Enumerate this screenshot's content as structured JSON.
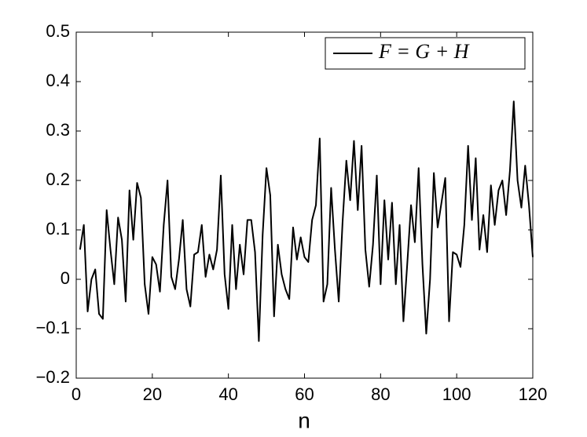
{
  "chart_data": {
    "type": "line",
    "xlabel": "n",
    "x": [
      1,
      2,
      3,
      4,
      5,
      6,
      7,
      8,
      9,
      10,
      11,
      12,
      13,
      14,
      15,
      16,
      17,
      18,
      19,
      20,
      21,
      22,
      23,
      24,
      25,
      26,
      27,
      28,
      29,
      30,
      31,
      32,
      33,
      34,
      35,
      36,
      37,
      38,
      39,
      40,
      41,
      42,
      43,
      44,
      45,
      46,
      47,
      48,
      49,
      50,
      51,
      52,
      53,
      54,
      55,
      56,
      57,
      58,
      59,
      60,
      61,
      62,
      63,
      64,
      65,
      66,
      67,
      68,
      69,
      70,
      71,
      72,
      73,
      74,
      75,
      76,
      77,
      78,
      79,
      80,
      81,
      82,
      83,
      84,
      85,
      86,
      87,
      88,
      89,
      90,
      91,
      92,
      93,
      94,
      95,
      96,
      97,
      98,
      99,
      100,
      101,
      102,
      103,
      104,
      105,
      106,
      107,
      108,
      109,
      110,
      111,
      112,
      113,
      114,
      115,
      116,
      117,
      118,
      119,
      120
    ],
    "series": [
      {
        "name": "F = G + H",
        "color": "#000000",
        "values": [
          0.06,
          0.11,
          -0.065,
          0.0,
          0.02,
          -0.07,
          -0.08,
          0.14,
          0.06,
          -0.01,
          0.125,
          0.08,
          -0.045,
          0.18,
          0.08,
          0.195,
          0.165,
          -0.01,
          -0.07,
          0.045,
          0.03,
          -0.025,
          0.11,
          0.2,
          0.005,
          -0.02,
          0.04,
          0.12,
          -0.02,
          -0.055,
          0.05,
          0.055,
          0.11,
          0.005,
          0.05,
          0.02,
          0.06,
          0.21,
          0.01,
          -0.06,
          0.11,
          -0.02,
          0.07,
          0.01,
          0.12,
          0.12,
          0.055,
          -0.125,
          0.09,
          0.225,
          0.17,
          -0.075,
          0.07,
          0.01,
          -0.02,
          -0.04,
          0.105,
          0.04,
          0.085,
          0.045,
          0.035,
          0.12,
          0.15,
          0.285,
          -0.045,
          -0.01,
          0.185,
          0.06,
          -0.045,
          0.115,
          0.24,
          0.16,
          0.28,
          0.14,
          0.27,
          0.06,
          -0.015,
          0.07,
          0.21,
          -0.01,
          0.16,
          0.04,
          0.155,
          -0.01,
          0.11,
          -0.085,
          0.03,
          0.15,
          0.075,
          0.225,
          0.03,
          -0.11,
          0.0,
          0.215,
          0.105,
          0.155,
          0.205,
          -0.085,
          0.055,
          0.05,
          0.025,
          0.11,
          0.27,
          0.12,
          0.245,
          0.06,
          0.13,
          0.055,
          0.19,
          0.11,
          0.18,
          0.2,
          0.13,
          0.22,
          0.36,
          0.2,
          0.145,
          0.23,
          0.15,
          0.045
        ]
      }
    ],
    "xlim": [
      0,
      120
    ],
    "xticks": [
      0,
      20,
      40,
      60,
      80,
      100,
      120
    ],
    "ylim": [
      -0.2,
      0.5
    ],
    "yticks": [
      {
        "value": -0.2,
        "label": "−0.2"
      },
      {
        "value": -0.1,
        "label": "−0.1"
      },
      0,
      0.1,
      0.2,
      0.3,
      0.4,
      0.5
    ],
    "grid": false,
    "legend": "upper right"
  }
}
